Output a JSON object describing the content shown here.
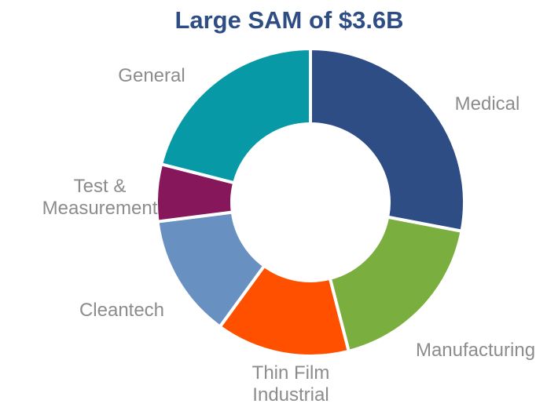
{
  "chart_data": {
    "type": "donut",
    "title": "Large SAM of $3.6B",
    "categories": [
      "Medical",
      "Manufacturing",
      "Thin Film Industrial",
      "Cleantech",
      "Test & Measurement",
      "General"
    ],
    "values": [
      28,
      18,
      14,
      13,
      6,
      21
    ],
    "colors": [
      "#2e4d85",
      "#7aae3f",
      "#ff5000",
      "#6891c2",
      "#85175a",
      "#079aa6"
    ]
  }
}
